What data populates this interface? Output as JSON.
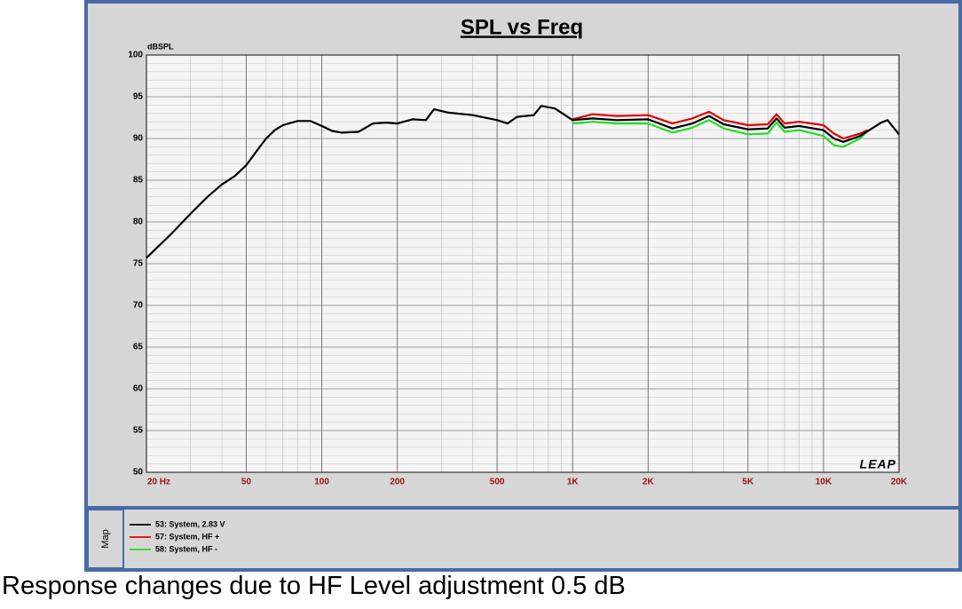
{
  "chart_data": {
    "type": "line",
    "title": "SPL vs Freq",
    "ylabel": "dBSPL",
    "logo": "LEAP",
    "map_label": "Map",
    "log_x": true,
    "grid": true,
    "xlim": [
      20,
      20000
    ],
    "ylim": [
      50,
      100
    ],
    "xticks": [
      {
        "value": 20,
        "label": "20 Hz"
      },
      50,
      100,
      200,
      500,
      {
        "value": 1000,
        "label": "1K"
      },
      {
        "value": 2000,
        "label": "2K"
      },
      {
        "value": 5000,
        "label": "5K"
      },
      {
        "value": 10000,
        "label": "10K"
      },
      {
        "value": 20000,
        "label": "20K"
      }
    ],
    "yticks": [
      50,
      55,
      60,
      65,
      70,
      75,
      80,
      85,
      90,
      95,
      100
    ],
    "series": [
      {
        "name": "53: System, 2.83 V",
        "color": "#000000",
        "x": [
          20,
          25,
          30,
          35,
          40,
          45,
          50,
          55,
          60,
          65,
          70,
          80,
          90,
          100,
          110,
          120,
          140,
          160,
          180,
          200,
          230,
          260,
          280,
          320,
          400,
          500,
          550,
          600,
          700,
          750,
          850,
          1000,
          1200,
          1500,
          2000,
          2500,
          3000,
          3500,
          4000,
          5000,
          6000,
          6500,
          7000,
          8000,
          10000,
          11000,
          12000,
          14000,
          17000,
          18000,
          20000
        ],
        "values": [
          75.7,
          78.5,
          81,
          83,
          84.5,
          85.5,
          86.8,
          88.5,
          90,
          91,
          91.6,
          92.1,
          92.1,
          91.5,
          90.9,
          90.7,
          90.8,
          91.8,
          91.9,
          91.8,
          92.3,
          92.2,
          93.5,
          93.1,
          92.8,
          92.2,
          91.8,
          92.6,
          92.8,
          93.9,
          93.6,
          92.2,
          92.4,
          92.2,
          92.3,
          91.2,
          91.8,
          92.7,
          91.7,
          91.1,
          91.2,
          92.4,
          91.3,
          91.5,
          91.0,
          90.0,
          89.6,
          90.3,
          91.9,
          92.2,
          90.5
        ]
      },
      {
        "name": "57: System, HF +",
        "color": "#e00000",
        "x": [
          1000,
          1200,
          1500,
          2000,
          2500,
          3000,
          3500,
          4000,
          5000,
          6000,
          6500,
          7000,
          8000,
          10000,
          11000,
          12000,
          14000,
          15000
        ],
        "values": [
          92.3,
          92.9,
          92.7,
          92.8,
          91.8,
          92.4,
          93.2,
          92.2,
          91.6,
          91.7,
          92.9,
          91.8,
          92.0,
          91.6,
          90.6,
          90.0,
          90.6,
          91.0
        ]
      },
      {
        "name": "58: System, HF -",
        "color": "#22dd22",
        "x": [
          1000,
          1200,
          1500,
          2000,
          2500,
          3000,
          3500,
          4000,
          5000,
          6000,
          6500,
          7000,
          8000,
          10000,
          11000,
          12000,
          14000,
          15000
        ],
        "values": [
          91.8,
          92.0,
          91.8,
          91.8,
          90.7,
          91.3,
          92.2,
          91.2,
          90.5,
          90.6,
          91.9,
          90.8,
          91.0,
          90.3,
          89.2,
          89.0,
          90.0,
          90.9
        ]
      }
    ]
  },
  "caption": "Response changes due to HF Level adjustment 0.5 dB"
}
